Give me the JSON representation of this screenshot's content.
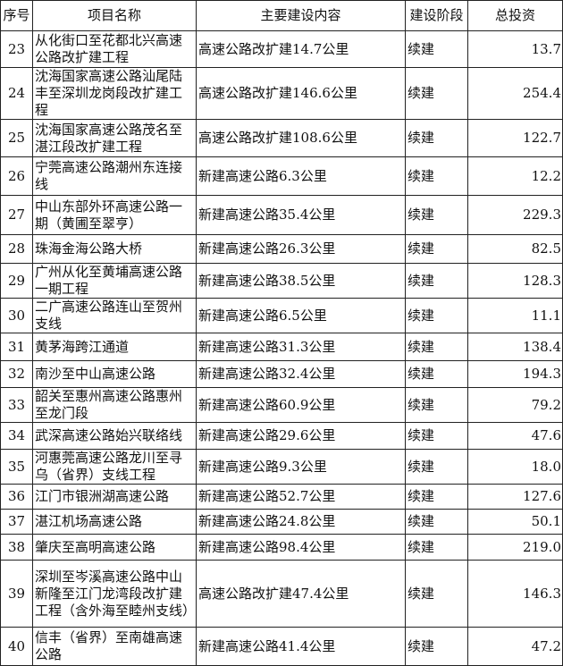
{
  "headers": {
    "no": "序号",
    "name": "项目名称",
    "content": "主要建设内容",
    "stage": "建设阶段",
    "investment": "总投资"
  },
  "rows": [
    {
      "no": "23",
      "name": "从化街口至花都北兴高速公路改扩建工程",
      "content": "高速公路改扩建14.7公里",
      "stage": "续建",
      "investment": "13.7"
    },
    {
      "no": "24",
      "name": "沈海国家高速公路汕尾陆丰至深圳龙岗段改扩建工程",
      "content": "高速公路改扩建146.6公里",
      "stage": "续建",
      "investment": "254.4"
    },
    {
      "no": "25",
      "name": "沈海国家高速公路茂名至湛江段改扩建工程",
      "content": "高速公路改扩建108.6公里",
      "stage": "续建",
      "investment": "122.7"
    },
    {
      "no": "26",
      "name": "宁莞高速公路潮州东连接线",
      "content": "新建高速公路6.3公里",
      "stage": "续建",
      "investment": "12.2"
    },
    {
      "no": "27",
      "name": "中山东部外环高速公路一期（黄圃至翠亨）",
      "content": "新建高速公路35.4公里",
      "stage": "续建",
      "investment": "229.3"
    },
    {
      "no": "28",
      "name": "珠海金海公路大桥",
      "content": "新建高速公路26.3公里",
      "stage": "续建",
      "investment": "82.5"
    },
    {
      "no": "29",
      "name": "广州从化至黄埔高速公路一期工程",
      "content": "新建高速公路38.5公里",
      "stage": "续建",
      "investment": "128.3"
    },
    {
      "no": "30",
      "name": "二广高速公路连山至贺州支线",
      "content": "新建高速公路6.5公里",
      "stage": "续建",
      "investment": "11.1"
    },
    {
      "no": "31",
      "name": "黄茅海跨江通道",
      "content": "新建高速公路31.3公里",
      "stage": "续建",
      "investment": "138.4"
    },
    {
      "no": "32",
      "name": "南沙至中山高速公路",
      "content": "新建高速公路32.4公里",
      "stage": "续建",
      "investment": "194.3"
    },
    {
      "no": "33",
      "name": "韶关至惠州高速公路惠州至龙门段",
      "content": "新建高速公路60.9公里",
      "stage": "续建",
      "investment": "79.2"
    },
    {
      "no": "34",
      "name": "武深高速公路始兴联络线",
      "content": "新建高速公路29.6公里",
      "stage": "续建",
      "investment": "47.6"
    },
    {
      "no": "35",
      "name": "河惠莞高速公路龙川至寻乌（省界）支线工程",
      "content": "新建高速公路9.3公里",
      "stage": "续建",
      "investment": "18.0"
    },
    {
      "no": "36",
      "name": "江门市银洲湖高速公路",
      "content": "新建高速公路52.7公里",
      "stage": "续建",
      "investment": "127.6"
    },
    {
      "no": "37",
      "name": "湛江机场高速公路",
      "content": "新建高速公路24.8公里",
      "stage": "续建",
      "investment": "50.1"
    },
    {
      "no": "38",
      "name": "肇庆至高明高速公路",
      "content": "新建高速公路98.4公里",
      "stage": "续建",
      "investment": "219.0"
    },
    {
      "no": "39",
      "name": "深圳至岑溪高速公路中山新隆至江门龙湾段改扩建工程（含外海至睦州支线）",
      "content": "高速公路改扩建47.4公里",
      "stage": "续建",
      "investment": "146.3"
    },
    {
      "no": "40",
      "name": "信丰（省界）至南雄高速公路",
      "content": "新建高速公路41.4公里",
      "stage": "续建",
      "investment": "47.2"
    }
  ]
}
